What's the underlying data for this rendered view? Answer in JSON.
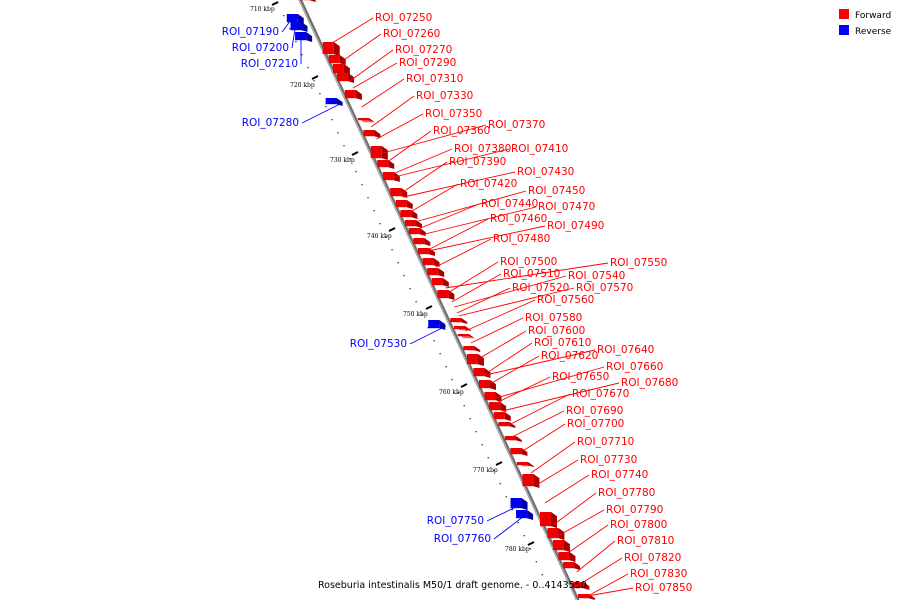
{
  "caption": "Roseburia intestinalis M50/1 draft genome. - 0..4143550",
  "legend": [
    {
      "label": "Forward",
      "color": "#ff0000"
    },
    {
      "label": "Reverse",
      "color": "#0000ff"
    }
  ],
  "ticks": [
    "710 kbp",
    "720 kbp",
    "730 kbp",
    "740 kbp",
    "750 kbp",
    "760 kbp",
    "770 kbp",
    "780 kbp"
  ],
  "reverse_labels": [
    "ROI_07190",
    "ROI_07200",
    "ROI_07210",
    "ROI_07280",
    "ROI_07530",
    "ROI_07750",
    "ROI_07760"
  ],
  "forward_labels": [
    "ROI_07250",
    "ROI_07260",
    "ROI_07270",
    "ROI_07290",
    "ROI_07310",
    "ROI_07330",
    "ROI_07350",
    "ROI_07370",
    "ROI_07360",
    "ROI_07380",
    "ROI_07410",
    "ROI_07390",
    "ROI_07430",
    "ROI_07420",
    "ROI_07450",
    "ROI_07440",
    "ROI_07470",
    "ROI_07460",
    "ROI_07490",
    "ROI_07480",
    "ROI_07500",
    "ROI_07550",
    "ROI_07510",
    "ROI_07540",
    "ROI_07520",
    "ROI_07570",
    "ROI_07560",
    "ROI_07580",
    "ROI_07600",
    "ROI_07610",
    "ROI_07640",
    "ROI_07620",
    "ROI_07660",
    "ROI_07650",
    "ROI_07680",
    "ROI_07670",
    "ROI_07690",
    "ROI_07700",
    "ROI_07710",
    "ROI_07730",
    "ROI_07740",
    "ROI_07780",
    "ROI_07790",
    "ROI_07800",
    "ROI_07810",
    "ROI_07820",
    "ROI_07830",
    "ROI_07850"
  ]
}
